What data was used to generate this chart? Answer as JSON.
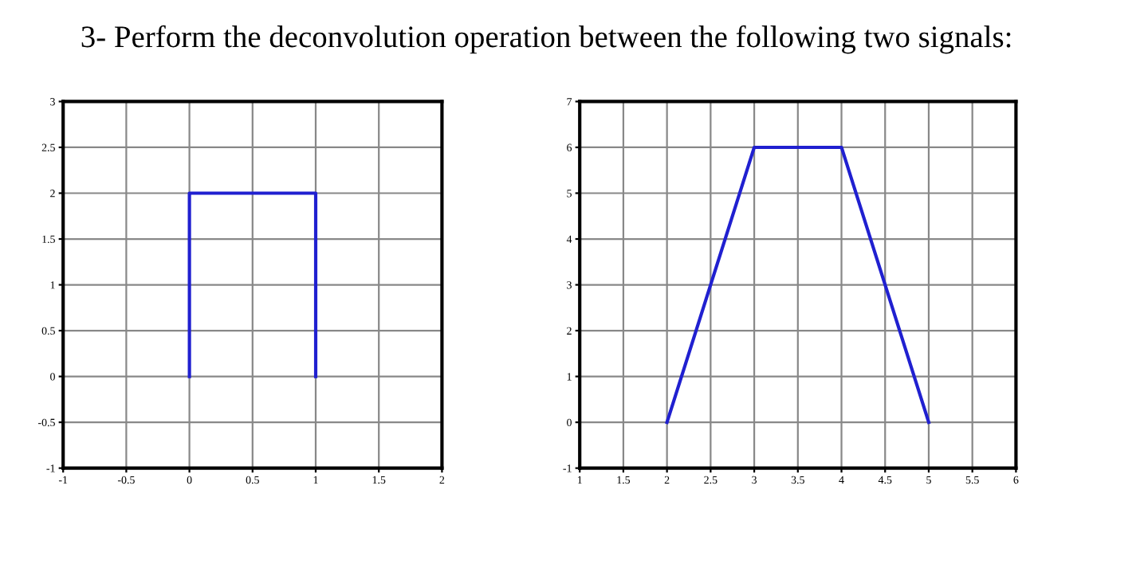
{
  "chart_data": [
    {
      "type": "line",
      "title": "3- Perform the deconvolution operation between the following two signals:",
      "x": [
        0,
        0,
        1,
        1
      ],
      "series": [
        {
          "color": "#2020d0",
          "values": [
            0,
            2,
            2,
            0
          ]
        }
      ],
      "xlim": [
        -1,
        2
      ],
      "ylim": [
        -1,
        3
      ],
      "xticks": [
        -1,
        -0.5,
        0,
        0.5,
        1,
        1.5,
        2
      ],
      "yticks": [
        -1,
        -0.5,
        0,
        0.5,
        1,
        1.5,
        2,
        2.5,
        3
      ],
      "grid": true
    },
    {
      "type": "line",
      "x": [
        2,
        3,
        4,
        5
      ],
      "series": [
        {
          "color": "#2020d0",
          "values": [
            0,
            6,
            6,
            0
          ]
        }
      ],
      "xlim": [
        1,
        6
      ],
      "ylim": [
        -1,
        7
      ],
      "xticks": [
        1,
        1.5,
        2,
        2.5,
        3,
        3.5,
        4,
        4.5,
        5,
        5.5,
        6
      ],
      "yticks": [
        -1,
        0,
        1,
        2,
        3,
        4,
        5,
        6,
        7
      ],
      "grid": true
    }
  ]
}
